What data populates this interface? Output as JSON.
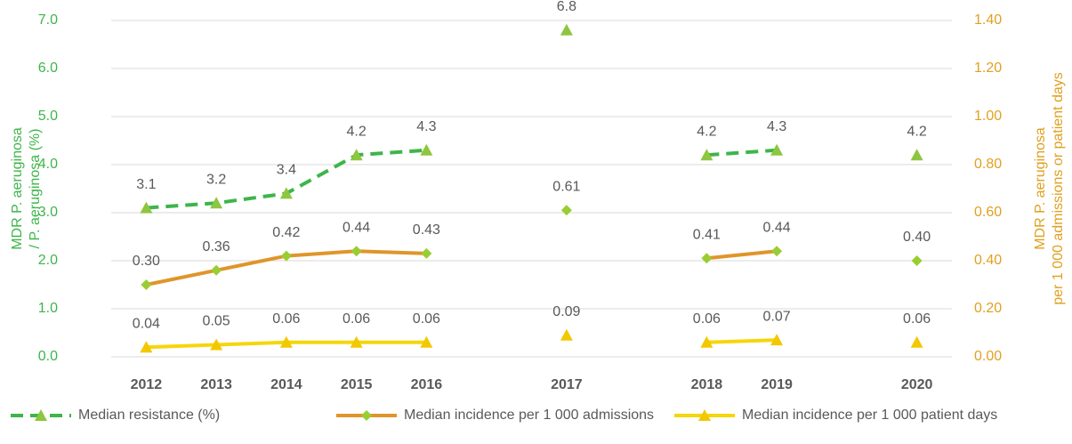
{
  "chart_data": {
    "type": "line",
    "categories": [
      "2012",
      "2013",
      "2014",
      "2015",
      "2016",
      null,
      "2017",
      null,
      "2018",
      "2019",
      null,
      "2020"
    ],
    "y_label": [
      "MDR P. aeruginosa",
      "/ P. aeruginosa (%)"
    ],
    "y2_label": [
      "MDR P. aeruginosa",
      "per 1 000 admissions or patient days"
    ],
    "ylim": [
      0,
      7
    ],
    "yticks": [
      {
        "value": 0,
        "label": "0.0"
      },
      {
        "value": 1,
        "label": "1.0"
      },
      {
        "value": 2,
        "label": "2.0"
      },
      {
        "value": 3,
        "label": "3.0"
      },
      {
        "value": 4,
        "label": "4.0"
      },
      {
        "value": 5,
        "label": "5.0"
      },
      {
        "value": 6,
        "label": "6.0"
      },
      {
        "value": 7,
        "label": "7.0"
      }
    ],
    "y2lim": [
      0,
      1.4
    ],
    "y2ticks": [
      {
        "value": 0,
        "label": "0.00"
      },
      {
        "value": 0.2,
        "label": "0.20"
      },
      {
        "value": 0.4,
        "label": "0.40"
      },
      {
        "value": 0.6,
        "label": "0.60"
      },
      {
        "value": 0.8,
        "label": "0.80"
      },
      {
        "value": 1,
        "label": "1.00"
      },
      {
        "value": 1.2,
        "label": "1.20"
      },
      {
        "value": 1.4,
        "label": "1.40"
      }
    ],
    "grid": true,
    "legend": "bottom",
    "series": [
      {
        "name": "Median resistance (%)",
        "color": "#3db54a",
        "marker_color": "#8dc63f",
        "marker": "triangle",
        "dashed": true,
        "values": [
          3.1,
          3.2,
          3.4,
          4.2,
          4.3,
          null,
          6.8,
          null,
          4.2,
          4.3,
          null,
          4.2
        ]
      },
      {
        "name": "Median incidence per 1 000 admissions",
        "color": "#e0952a",
        "marker_color": "#9acd32",
        "marker": "diamond",
        "dashed": false,
        "axis": "y2",
        "values": [
          0.3,
          0.36,
          0.42,
          0.44,
          0.43,
          null,
          0.61,
          null,
          0.41,
          0.44,
          null,
          0.4
        ],
        "value_labels": [
          "0.30",
          "0.36",
          "0.42",
          "0.44",
          "0.43",
          null,
          "0.61",
          null,
          "0.41",
          "0.44",
          null,
          "0.40"
        ]
      },
      {
        "name": "Median incidence per 1 000 patient days",
        "color": "#f5d60a",
        "marker_color": "#f2c800",
        "marker": "triangle",
        "dashed": false,
        "axis": "y2",
        "values": [
          0.04,
          0.05,
          0.06,
          0.06,
          0.06,
          null,
          0.09,
          null,
          0.06,
          0.07,
          null,
          0.06
        ],
        "value_labels": [
          "0.04",
          "0.05",
          "0.06",
          "0.06",
          "0.06",
          null,
          "0.09",
          null,
          "0.06",
          "0.07",
          null,
          "0.06"
        ]
      }
    ]
  }
}
